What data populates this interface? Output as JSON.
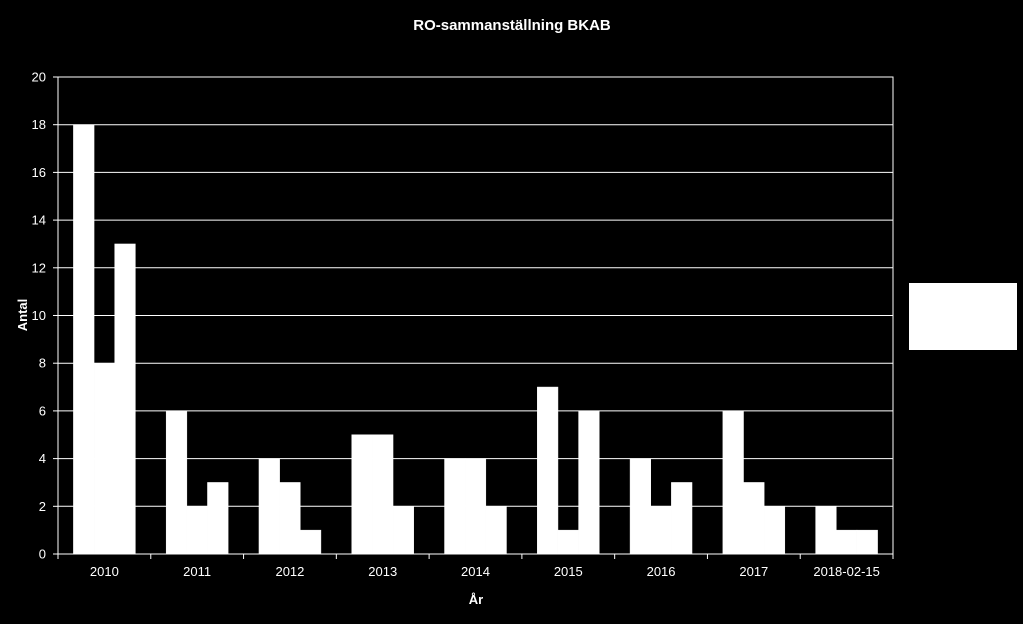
{
  "chart_data": {
    "type": "bar",
    "title": "RO-sammanställning  BKAB",
    "xlabel": "År",
    "ylabel": "Antal",
    "ylim": [
      0,
      20
    ],
    "yticks": [
      0,
      2,
      4,
      6,
      8,
      10,
      12,
      14,
      16,
      18,
      20
    ],
    "grid": true,
    "categories": [
      "2010",
      "2011",
      "2012",
      "2013",
      "2014",
      "2015",
      "2016",
      "2017",
      "2018-02-15"
    ],
    "series": [
      {
        "values": [
          18,
          6,
          4,
          5,
          4,
          7,
          4,
          6,
          2
        ]
      },
      {
        "values": [
          8,
          2,
          3,
          5,
          4,
          1,
          2,
          3,
          1
        ]
      },
      {
        "values": [
          13,
          3,
          1,
          2,
          2,
          6,
          3,
          2,
          1
        ]
      }
    ],
    "bar_color": "#ffffff",
    "background_color": "#000000",
    "legend": {
      "placement": "right",
      "entries": []
    }
  }
}
